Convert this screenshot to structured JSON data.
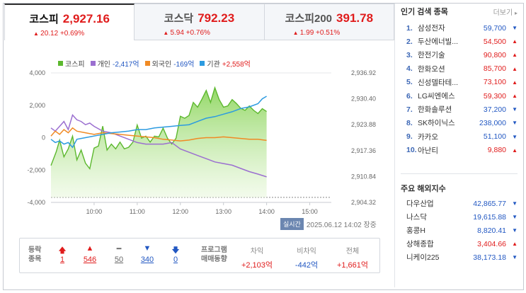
{
  "tabs": [
    {
      "name": "코스피",
      "price": "2,927.16",
      "change": "20.12 +0.69%",
      "active": true
    },
    {
      "name": "코스닥",
      "price": "792.23",
      "change": "5.94 +0.76%",
      "active": false
    },
    {
      "name": "코스피200",
      "price": "391.78",
      "change": "1.99 +0.51%",
      "active": false
    }
  ],
  "legend": [
    {
      "label": "코스피",
      "value": "",
      "color": "#5cb82e"
    },
    {
      "label": "개인",
      "value": "-2,417억",
      "color": "#9b6fd0",
      "valueColor": "#2157c2"
    },
    {
      "label": "외국인",
      "value": "-169억",
      "color": "#f08a24",
      "valueColor": "#2157c2"
    },
    {
      "label": "기관",
      "value": "+2,558억",
      "color": "#2c9be0",
      "valueColor": "#e01c1c"
    }
  ],
  "timestamp": {
    "badge": "실시간",
    "text": "2025.06.12 14:02 장중"
  },
  "chart_data": {
    "type": "line",
    "x_ticks": [
      "10:00",
      "11:00",
      "12:00",
      "13:00",
      "14:00",
      "15:00"
    ],
    "y_left_ticks": [
      "4,000",
      "2,000",
      "0",
      "-2,000",
      "-4,000"
    ],
    "y_left_range": [
      -4000,
      4000
    ],
    "y_right_ticks": [
      "2,936.92",
      "2,930.40",
      "2,923.88",
      "2,917.36",
      "2,910.84",
      "2,904.32"
    ],
    "y_right_range": [
      2904.32,
      2936.92
    ],
    "x_range": [
      9.0,
      15.5
    ],
    "series": [
      {
        "name": "코스피",
        "axis": "right",
        "type": "area",
        "color": "#5cb82e",
        "x": [
          9.0,
          9.12,
          9.2,
          9.3,
          9.4,
          9.5,
          9.6,
          9.7,
          9.8,
          9.9,
          10.0,
          10.1,
          10.2,
          10.3,
          10.4,
          10.5,
          10.6,
          10.7,
          10.8,
          10.9,
          11.0,
          11.1,
          11.2,
          11.3,
          11.4,
          11.5,
          11.6,
          11.7,
          11.8,
          11.9,
          12.0,
          12.1,
          12.2,
          12.3,
          12.4,
          12.5,
          12.6,
          12.7,
          12.8,
          12.9,
          13.0,
          13.1,
          13.2,
          13.3,
          13.4,
          13.5,
          13.6,
          13.7,
          13.8,
          13.9,
          14.0
        ],
        "y": [
          2913.6,
          2917.0,
          2920.0,
          2915.8,
          2917.8,
          2921.0,
          2915.0,
          2917.5,
          2914.2,
          2912.8,
          2918.0,
          2918.5,
          2923.5,
          2917.5,
          2919.0,
          2917.8,
          2919.5,
          2917.8,
          2918.2,
          2919.5,
          2923.8,
          2920.5,
          2921.0,
          2919.5,
          2921.0,
          2920.8,
          2923.0,
          2920.5,
          2919.0,
          2920.5,
          2926.0,
          2925.5,
          2926.2,
          2929.5,
          2928.3,
          2930.3,
          2932.5,
          2929.5,
          2933.2,
          2930.2,
          2928.3,
          2928.6,
          2930.2,
          2929.2,
          2928.0,
          2927.5,
          2928.6,
          2927.5,
          2926.7,
          2927.9,
          2927.2
        ]
      },
      {
        "name": "개인",
        "axis": "left",
        "type": "line",
        "color": "#9b6fd0",
        "x": [
          9.0,
          9.1,
          9.2,
          9.3,
          9.4,
          9.5,
          9.6,
          9.7,
          9.8,
          9.9,
          10.0,
          10.2,
          10.4,
          10.6,
          10.8,
          11.0,
          11.2,
          11.4,
          11.6,
          11.8,
          12.0,
          12.2,
          12.4,
          12.6,
          12.8,
          13.0,
          13.2,
          13.4,
          13.6,
          13.8,
          14.0
        ],
        "y": [
          600,
          400,
          700,
          1000,
          500,
          1400,
          1100,
          1000,
          800,
          900,
          700,
          400,
          300,
          100,
          -100,
          -300,
          -400,
          -400,
          -400,
          -300,
          -700,
          -900,
          -1100,
          -1300,
          -1500,
          -1600,
          -1700,
          -1900,
          -2100,
          -2250,
          -2420
        ]
      },
      {
        "name": "외국인",
        "axis": "left",
        "type": "line",
        "color": "#f08a24",
        "x": [
          9.0,
          9.1,
          9.2,
          9.3,
          9.4,
          9.5,
          9.6,
          9.8,
          10.0,
          10.2,
          10.4,
          10.6,
          10.8,
          11.0,
          11.2,
          11.4,
          11.6,
          11.8,
          12.0,
          12.2,
          12.4,
          12.6,
          12.8,
          13.0,
          13.2,
          13.4,
          13.6,
          13.8,
          14.0
        ],
        "y": [
          100,
          400,
          200,
          500,
          300,
          600,
          400,
          300,
          200,
          300,
          250,
          200,
          150,
          100,
          50,
          0,
          -100,
          -150,
          -200,
          -150,
          -50,
          0,
          0,
          50,
          0,
          -50,
          -100,
          -100,
          -170
        ]
      },
      {
        "name": "기관",
        "axis": "left",
        "type": "line",
        "color": "#2c9be0",
        "x": [
          9.0,
          9.1,
          9.2,
          9.3,
          9.4,
          9.5,
          9.6,
          9.8,
          10.0,
          10.2,
          10.4,
          10.6,
          10.8,
          11.0,
          11.2,
          11.4,
          11.6,
          11.8,
          12.0,
          12.2,
          12.4,
          12.6,
          12.8,
          13.0,
          13.2,
          13.4,
          13.6,
          13.8,
          13.9,
          14.0
        ],
        "y": [
          -100,
          -300,
          -200,
          -400,
          -300,
          -600,
          -100,
          0,
          100,
          200,
          300,
          350,
          400,
          500,
          500,
          600,
          650,
          700,
          750,
          800,
          1000,
          1200,
          1300,
          1450,
          1600,
          1800,
          1900,
          2100,
          2400,
          2558
        ]
      }
    ],
    "dashed_reference_y_right": 2905.6
  },
  "breadth": {
    "label1": "등락",
    "label2": "종목",
    "items": [
      {
        "sym": "🡅",
        "value": "1",
        "color": "#e01c1c"
      },
      {
        "sym": "▲",
        "value": "546",
        "color": "#e01c1c"
      },
      {
        "sym": "━",
        "value": "50",
        "color": "#666"
      },
      {
        "sym": "▼",
        "value": "340",
        "color": "#2157c2"
      },
      {
        "sym": "🡇",
        "value": "0",
        "color": "#2157c2"
      }
    ]
  },
  "program": {
    "label1": "프로그램",
    "label2": "매매동향",
    "cols": [
      {
        "head": "차익",
        "value": "+2,103억",
        "color": "#e01c1c"
      },
      {
        "head": "비차익",
        "value": "-442억",
        "color": "#2157c2"
      },
      {
        "head": "전체",
        "value": "+1,661억",
        "color": "#e01c1c"
      }
    ]
  },
  "popular": {
    "title": "인기 검색 종목",
    "more": "더보기",
    "items": [
      {
        "rank": "1.",
        "name": "삼성전자",
        "price": "59,700",
        "dir": "down"
      },
      {
        "rank": "2.",
        "name": "두산에너빌...",
        "price": "54,500",
        "dir": "up"
      },
      {
        "rank": "3.",
        "name": "한전기술",
        "price": "90,800",
        "dir": "up"
      },
      {
        "rank": "4.",
        "name": "한화오션",
        "price": "85,700",
        "dir": "up"
      },
      {
        "rank": "5.",
        "name": "신성델타테...",
        "price": "73,100",
        "dir": "up"
      },
      {
        "rank": "6.",
        "name": "LG씨엔에스",
        "price": "59,300",
        "dir": "up"
      },
      {
        "rank": "7.",
        "name": "한화솔루션",
        "price": "37,200",
        "dir": "down"
      },
      {
        "rank": "8.",
        "name": "SK하이닉스",
        "price": "238,000",
        "dir": "down"
      },
      {
        "rank": "9.",
        "name": "카카오",
        "price": "51,100",
        "dir": "down"
      },
      {
        "rank": "10.",
        "name": "아난티",
        "price": "9,880",
        "dir": "up"
      }
    ]
  },
  "overseas": {
    "title": "주요 해외지수",
    "items": [
      {
        "name": "다우산업",
        "price": "42,865.77",
        "dir": "down"
      },
      {
        "name": "나스닥",
        "price": "19,615.88",
        "dir": "down"
      },
      {
        "name": "홍콩H",
        "price": "8,820.41",
        "dir": "down"
      },
      {
        "name": "상해종합",
        "price": "3,404.66",
        "dir": "up"
      },
      {
        "name": "니케이225",
        "price": "38,173.18",
        "dir": "down"
      }
    ]
  }
}
